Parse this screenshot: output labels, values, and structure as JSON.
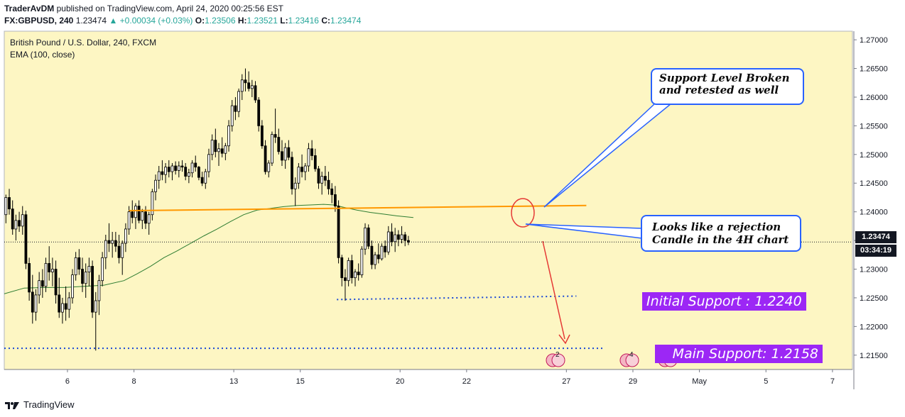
{
  "header": {
    "author": "TraderAvDM",
    "published": "published on TradingView.com, April 24, 2020 00:25:56 EST",
    "symbol": "FX:GBPUSD, 240",
    "last": "1.23474",
    "change": "+0.00034 (+0.03%)",
    "o_label": "O:",
    "o": "1.23506",
    "h_label": "H:",
    "h": "1.23521",
    "l_label": "L:",
    "l": "1.23416",
    "c_label": "C:",
    "c": "1.23474"
  },
  "legend": {
    "title": "British Pound / U.S. Dollar, 240, FXCM",
    "indicator": "EMA (100, close)"
  },
  "price_axis": {
    "last_price_tag": "1.23474",
    "countdown_tag": "03:34:19"
  },
  "annotations": {
    "broken_line1": "Support Level Broken",
    "broken_line2": "and retested as well",
    "reject_line1": "Looks like a rejection",
    "reject_line2": "Candle in the 4H chart",
    "initial_support": "Initial Support : 1.2240",
    "main_support": "Main Support: 1.2158"
  },
  "event_badges": [
    "2",
    "4",
    "2 3 7"
  ],
  "footer": {
    "brand": "TradingView"
  },
  "colors": {
    "plot_bg": "#fdf6c3",
    "ema": "#2e7d32",
    "resistance": "#ff9800",
    "support_dots": "#1a47d6",
    "callout": "#2962ff",
    "arrow": "#e53935",
    "label_bg": "#9c27f5",
    "candle_up": "#ffffff",
    "candle_down": "#000000"
  },
  "chart_data": {
    "type": "candlestick",
    "title": "British Pound / U.S. Dollar, 240, FXCM",
    "ylim": [
      1.2125,
      1.2715
    ],
    "y_ticks": [
      "1.27000",
      "1.26500",
      "1.26000",
      "1.25500",
      "1.25000",
      "1.24500",
      "1.24000",
      "1.23500",
      "1.23000",
      "1.22500",
      "1.22000",
      "1.21500"
    ],
    "x_ticks": [
      {
        "label": "6",
        "x": 0.9
      },
      {
        "label": "8",
        "x": 2.9
      },
      {
        "label": "13",
        "x": 5.9
      },
      {
        "label": "15",
        "x": 7.9
      },
      {
        "label": "20",
        "x": 10.9
      },
      {
        "label": "22",
        "x": 12.9
      },
      {
        "label": "27",
        "x": 15.9
      },
      {
        "label": "29",
        "x": 17.9
      },
      {
        "label": "May",
        "x": 19.9
      },
      {
        "label": "5",
        "x": 21.9
      },
      {
        "label": "7",
        "x": 23.9
      }
    ],
    "xlim": [
      -1.0,
      24.5
    ],
    "candles": [
      [
        -0.95,
        1.2395,
        1.243,
        1.238,
        1.2425
      ],
      [
        -0.85,
        1.2425,
        1.244,
        1.2395,
        1.2405
      ],
      [
        -0.75,
        1.2405,
        1.242,
        1.236,
        1.237
      ],
      [
        -0.65,
        1.237,
        1.2395,
        1.235,
        1.2385
      ],
      [
        -0.55,
        1.2385,
        1.24,
        1.2365,
        1.2375
      ],
      [
        -0.45,
        1.2375,
        1.241,
        1.236,
        1.2395
      ],
      [
        -0.35,
        1.2395,
        1.2402,
        1.23,
        1.231
      ],
      [
        -0.25,
        1.231,
        1.232,
        1.2245,
        1.226
      ],
      [
        -0.15,
        1.226,
        1.229,
        1.2205,
        1.2225
      ],
      [
        -0.05,
        1.2225,
        1.2265,
        1.221,
        1.2255
      ],
      [
        0.05,
        1.2255,
        1.2295,
        1.224,
        1.228
      ],
      [
        0.15,
        1.228,
        1.23,
        1.225,
        1.227
      ],
      [
        0.25,
        1.227,
        1.232,
        1.226,
        1.231
      ],
      [
        0.35,
        1.231,
        1.234,
        1.228,
        1.2295
      ],
      [
        0.45,
        1.2295,
        1.232,
        1.227,
        1.23
      ],
      [
        0.55,
        1.23,
        1.2315,
        1.224,
        1.2255
      ],
      [
        0.65,
        1.2255,
        1.2285,
        1.2215,
        1.2225
      ],
      [
        0.75,
        1.2225,
        1.225,
        1.2205,
        1.224
      ],
      [
        0.85,
        1.224,
        1.227,
        1.221,
        1.223
      ],
      [
        0.95,
        1.223,
        1.226,
        1.2215,
        1.225
      ],
      [
        1.05,
        1.225,
        1.23,
        1.224,
        1.229
      ],
      [
        1.15,
        1.229,
        1.233,
        1.228,
        1.232
      ],
      [
        1.25,
        1.232,
        1.2335,
        1.229,
        1.23
      ],
      [
        1.35,
        1.23,
        1.232,
        1.226,
        1.2275
      ],
      [
        1.45,
        1.2275,
        1.231,
        1.225,
        1.2295
      ],
      [
        1.55,
        1.2295,
        1.232,
        1.227,
        1.2305
      ],
      [
        1.65,
        1.2305,
        1.2315,
        1.2215,
        1.2225
      ],
      [
        1.75,
        1.2225,
        1.226,
        1.2158,
        1.2245
      ],
      [
        1.85,
        1.2245,
        1.229,
        1.222,
        1.228
      ],
      [
        1.95,
        1.228,
        1.233,
        1.227,
        1.232
      ],
      [
        2.05,
        1.232,
        1.236,
        1.23,
        1.235
      ],
      [
        2.15,
        1.235,
        1.238,
        1.233,
        1.2345
      ],
      [
        2.25,
        1.2345,
        1.2365,
        1.232,
        1.235
      ],
      [
        2.35,
        1.235,
        1.2365,
        1.233,
        1.234
      ],
      [
        2.45,
        1.234,
        1.236,
        1.231,
        1.232
      ],
      [
        2.55,
        1.232,
        1.235,
        1.229,
        1.2345
      ],
      [
        2.65,
        1.2345,
        1.238,
        1.233,
        1.237
      ],
      [
        2.75,
        1.237,
        1.241,
        1.236,
        1.24
      ],
      [
        2.85,
        1.24,
        1.242,
        1.238,
        1.239
      ],
      [
        2.95,
        1.239,
        1.2415,
        1.237,
        1.241
      ],
      [
        3.05,
        1.241,
        1.242,
        1.238,
        1.2385
      ],
      [
        3.15,
        1.2385,
        1.2405,
        1.237,
        1.24
      ],
      [
        3.25,
        1.24,
        1.241,
        1.237,
        1.238
      ],
      [
        3.35,
        1.238,
        1.24,
        1.236,
        1.2395
      ],
      [
        3.45,
        1.2395,
        1.244,
        1.2385,
        1.2435
      ],
      [
        3.55,
        1.2435,
        1.2465,
        1.242,
        1.2455
      ],
      [
        3.65,
        1.2455,
        1.248,
        1.244,
        1.247
      ],
      [
        3.75,
        1.247,
        1.249,
        1.2455,
        1.2465
      ],
      [
        3.85,
        1.2465,
        1.2485,
        1.245,
        1.2478
      ],
      [
        3.95,
        1.2478,
        1.249,
        1.246,
        1.247
      ],
      [
        4.05,
        1.247,
        1.2485,
        1.2455,
        1.248
      ],
      [
        4.15,
        1.248,
        1.2488,
        1.2465,
        1.2472
      ],
      [
        4.25,
        1.2472,
        1.2488,
        1.246,
        1.248
      ],
      [
        4.35,
        1.248,
        1.249,
        1.247,
        1.2478
      ],
      [
        4.45,
        1.2478,
        1.2485,
        1.2455,
        1.2462
      ],
      [
        4.55,
        1.2462,
        1.2475,
        1.245,
        1.2468
      ],
      [
        4.65,
        1.2468,
        1.249,
        1.246,
        1.2485
      ],
      [
        4.75,
        1.2485,
        1.2498,
        1.247,
        1.2478
      ],
      [
        4.85,
        1.2478,
        1.248,
        1.2455,
        1.246
      ],
      [
        4.95,
        1.246,
        1.247,
        1.2445,
        1.245
      ],
      [
        5.05,
        1.245,
        1.2475,
        1.244,
        1.247
      ],
      [
        5.15,
        1.247,
        1.251,
        1.246,
        1.25
      ],
      [
        5.25,
        1.25,
        1.2535,
        1.249,
        1.2525
      ],
      [
        5.35,
        1.2525,
        1.2545,
        1.2495,
        1.2505
      ],
      [
        5.45,
        1.2505,
        1.252,
        1.248,
        1.251
      ],
      [
        5.55,
        1.251,
        1.253,
        1.2495,
        1.2502
      ],
      [
        5.65,
        1.2502,
        1.252,
        1.249,
        1.2515
      ],
      [
        5.75,
        1.2515,
        1.256,
        1.2505,
        1.255
      ],
      [
        5.85,
        1.255,
        1.2595,
        1.254,
        1.2585
      ],
      [
        5.95,
        1.2585,
        1.26,
        1.256,
        1.2575
      ],
      [
        6.05,
        1.2575,
        1.2615,
        1.2565,
        1.261
      ],
      [
        6.15,
        1.261,
        1.264,
        1.2595,
        1.263
      ],
      [
        6.25,
        1.263,
        1.265,
        1.261,
        1.2625
      ],
      [
        6.35,
        1.2625,
        1.2645,
        1.261,
        1.2615
      ],
      [
        6.45,
        1.2615,
        1.263,
        1.26,
        1.262
      ],
      [
        6.55,
        1.262,
        1.2628,
        1.259,
        1.2595
      ],
      [
        6.65,
        1.2595,
        1.26,
        1.254,
        1.255
      ],
      [
        6.75,
        1.255,
        1.256,
        1.251,
        1.2515
      ],
      [
        6.85,
        1.2515,
        1.2525,
        1.2465,
        1.247
      ],
      [
        6.95,
        1.247,
        1.249,
        1.246,
        1.2485
      ],
      [
        7.05,
        1.2485,
        1.254,
        1.248,
        1.2535
      ],
      [
        7.15,
        1.2535,
        1.258,
        1.252,
        1.253
      ],
      [
        7.25,
        1.253,
        1.2545,
        1.25,
        1.2505
      ],
      [
        7.35,
        1.2505,
        1.2525,
        1.248,
        1.249
      ],
      [
        7.45,
        1.249,
        1.252,
        1.2475,
        1.2512
      ],
      [
        7.55,
        1.2512,
        1.2525,
        1.249,
        1.2495
      ],
      [
        7.65,
        1.2495,
        1.2505,
        1.243,
        1.244
      ],
      [
        7.75,
        1.244,
        1.246,
        1.241,
        1.245
      ],
      [
        7.85,
        1.245,
        1.2485,
        1.244,
        1.2478
      ],
      [
        7.95,
        1.2478,
        1.25,
        1.246,
        1.247
      ],
      [
        8.05,
        1.247,
        1.2485,
        1.2455,
        1.248
      ],
      [
        8.15,
        1.248,
        1.252,
        1.247,
        1.251
      ],
      [
        8.25,
        1.251,
        1.2525,
        1.249,
        1.2498
      ],
      [
        8.35,
        1.2498,
        1.251,
        1.247,
        1.2475
      ],
      [
        8.45,
        1.2475,
        1.248,
        1.244,
        1.245
      ],
      [
        8.55,
        1.245,
        1.247,
        1.243,
        1.2462
      ],
      [
        8.65,
        1.2462,
        1.248,
        1.2445,
        1.2455
      ],
      [
        8.75,
        1.2455,
        1.247,
        1.243,
        1.244
      ],
      [
        8.85,
        1.244,
        1.245,
        1.2415,
        1.243
      ],
      [
        8.95,
        1.243,
        1.2445,
        1.24,
        1.241
      ],
      [
        9.05,
        1.241,
        1.242,
        1.231,
        1.232
      ],
      [
        9.15,
        1.232,
        1.2325,
        1.227,
        1.2285
      ],
      [
        9.25,
        1.2285,
        1.23,
        1.2245,
        1.228
      ],
      [
        9.35,
        1.228,
        1.232,
        1.227,
        1.2315
      ],
      [
        9.45,
        1.2315,
        1.2325,
        1.2275,
        1.2285
      ],
      [
        9.55,
        1.2285,
        1.23,
        1.227,
        1.2295
      ],
      [
        9.65,
        1.2295,
        1.231,
        1.228,
        1.229
      ],
      [
        9.75,
        1.229,
        1.234,
        1.2285,
        1.2335
      ],
      [
        9.85,
        1.2335,
        1.238,
        1.2325,
        1.2372
      ],
      [
        9.95,
        1.2372,
        1.2378,
        1.2335,
        1.234
      ],
      [
        10.05,
        1.234,
        1.235,
        1.23,
        1.2308
      ],
      [
        10.15,
        1.2308,
        1.233,
        1.23,
        1.2325
      ],
      [
        10.25,
        1.2325,
        1.2345,
        1.231,
        1.2318
      ],
      [
        10.35,
        1.2318,
        1.2345,
        1.2315,
        1.234
      ],
      [
        10.45,
        1.234,
        1.235,
        1.232,
        1.233
      ],
      [
        10.55,
        1.233,
        1.2375,
        1.2325,
        1.2365
      ],
      [
        10.65,
        1.2365,
        1.238,
        1.234,
        1.2348
      ],
      [
        10.75,
        1.2348,
        1.2372,
        1.233,
        1.236
      ],
      [
        10.85,
        1.236,
        1.2368,
        1.234,
        1.2352
      ],
      [
        10.95,
        1.2352,
        1.2375,
        1.2345,
        1.236
      ],
      [
        11.05,
        1.236,
        1.2365,
        1.234,
        1.235
      ],
      [
        11.15,
        1.235,
        1.2358,
        1.2342,
        1.2347
      ]
    ],
    "ema_100": [
      [
        -1.0,
        1.2257
      ],
      [
        -0.4,
        1.2267
      ],
      [
        0.2,
        1.2268
      ],
      [
        0.8,
        1.2268
      ],
      [
        1.4,
        1.227
      ],
      [
        2.0,
        1.2272
      ],
      [
        2.6,
        1.228
      ],
      [
        3.0,
        1.2292
      ],
      [
        3.4,
        1.2305
      ],
      [
        3.8,
        1.232
      ],
      [
        4.2,
        1.2332
      ],
      [
        4.6,
        1.2345
      ],
      [
        5.0,
        1.2358
      ],
      [
        5.4,
        1.237
      ],
      [
        5.8,
        1.2383
      ],
      [
        6.2,
        1.2395
      ],
      [
        6.6,
        1.2403
      ],
      [
        7.0,
        1.2406
      ],
      [
        7.4,
        1.2409
      ],
      [
        7.8,
        1.2411
      ],
      [
        8.2,
        1.2412
      ],
      [
        8.6,
        1.2413
      ],
      [
        8.9,
        1.2412
      ],
      [
        9.2,
        1.2408
      ],
      [
        9.6,
        1.2403
      ],
      [
        10.0,
        1.2399
      ],
      [
        10.4,
        1.2396
      ],
      [
        10.8,
        1.2393
      ],
      [
        11.3,
        1.239
      ]
    ],
    "resistance_line": {
      "from": [
        2.75,
        1.2402
      ],
      "to": [
        16.5,
        1.2411
      ]
    },
    "initial_support_line": {
      "from": [
        9.0,
        1.2247
      ],
      "to": [
        16.2,
        1.2253
      ]
    },
    "main_support_line": {
      "from": [
        -1.0,
        1.2162
      ],
      "to": [
        17.0,
        1.2162
      ]
    },
    "last_price": 1.23474
  }
}
